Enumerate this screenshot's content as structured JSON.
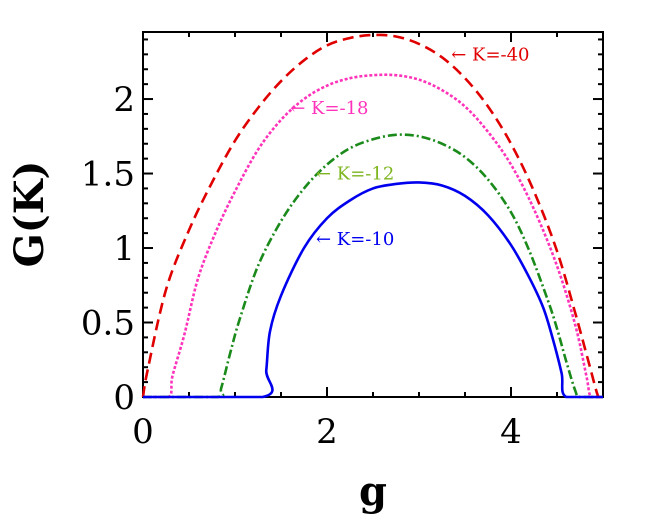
{
  "chart_data": {
    "type": "line",
    "title": "",
    "xlabel": "g",
    "ylabel": "G(K)",
    "xlim": [
      0,
      5
    ],
    "ylim": [
      0,
      2.45
    ],
    "x_ticks": [
      0,
      2,
      4
    ],
    "x_tick_labels": [
      "0",
      "2",
      "4"
    ],
    "y_ticks": [
      0,
      0.5,
      1,
      1.5,
      2
    ],
    "y_tick_labels": [
      "0",
      "0.5",
      "1",
      "1.5",
      "2"
    ],
    "grid": false,
    "legend": "none",
    "series": [
      {
        "label": "K=-40",
        "color": "#e00000",
        "dash": "dashed",
        "points": [
          [
            0,
            0
          ],
          [
            0.05,
            0.18
          ],
          [
            0.25,
            0.72
          ],
          [
            0.5,
            1.12
          ],
          [
            0.75,
            1.44
          ],
          [
            1.0,
            1.72
          ],
          [
            1.25,
            1.94
          ],
          [
            1.5,
            2.12
          ],
          [
            1.75,
            2.26
          ],
          [
            2.0,
            2.36
          ],
          [
            2.25,
            2.41
          ],
          [
            2.5,
            2.43
          ],
          [
            2.75,
            2.42
          ],
          [
            3.0,
            2.37
          ],
          [
            3.25,
            2.28
          ],
          [
            3.5,
            2.14
          ],
          [
            3.75,
            1.95
          ],
          [
            4.0,
            1.7
          ],
          [
            4.25,
            1.38
          ],
          [
            4.5,
            0.98
          ],
          [
            4.7,
            0.56
          ],
          [
            4.85,
            0.22
          ],
          [
            4.95,
            0
          ],
          [
            5.0,
            0
          ]
        ]
      },
      {
        "label": "K=-18",
        "color": "#ff33bb",
        "dash": "dotted",
        "points": [
          [
            0,
            0
          ],
          [
            0.28,
            0
          ],
          [
            0.32,
            0.14
          ],
          [
            0.45,
            0.42
          ],
          [
            0.6,
            0.8
          ],
          [
            0.8,
            1.12
          ],
          [
            1.0,
            1.38
          ],
          [
            1.25,
            1.66
          ],
          [
            1.5,
            1.86
          ],
          [
            1.75,
            2.0
          ],
          [
            2.0,
            2.09
          ],
          [
            2.25,
            2.14
          ],
          [
            2.5,
            2.16
          ],
          [
            2.75,
            2.16
          ],
          [
            3.0,
            2.13
          ],
          [
            3.25,
            2.06
          ],
          [
            3.5,
            1.95
          ],
          [
            3.75,
            1.78
          ],
          [
            4.0,
            1.56
          ],
          [
            4.25,
            1.26
          ],
          [
            4.5,
            0.88
          ],
          [
            4.7,
            0.48
          ],
          [
            4.82,
            0.14
          ],
          [
            4.87,
            0
          ],
          [
            5.0,
            0
          ]
        ]
      },
      {
        "label": "K=-12",
        "color": "#1a8a1a",
        "dash": "dashdot",
        "points": [
          [
            0,
            0
          ],
          [
            0.8,
            0
          ],
          [
            0.85,
            0.06
          ],
          [
            0.95,
            0.3
          ],
          [
            1.05,
            0.52
          ],
          [
            1.25,
            0.88
          ],
          [
            1.5,
            1.18
          ],
          [
            1.75,
            1.4
          ],
          [
            2.0,
            1.56
          ],
          [
            2.25,
            1.67
          ],
          [
            2.5,
            1.73
          ],
          [
            2.75,
            1.76
          ],
          [
            3.0,
            1.75
          ],
          [
            3.25,
            1.7
          ],
          [
            3.5,
            1.61
          ],
          [
            3.75,
            1.46
          ],
          [
            4.0,
            1.24
          ],
          [
            4.2,
            0.98
          ],
          [
            4.4,
            0.65
          ],
          [
            4.5,
            0.46
          ],
          [
            4.6,
            0.24
          ],
          [
            4.7,
            0.04
          ],
          [
            4.75,
            0
          ],
          [
            5.0,
            0
          ]
        ]
      },
      {
        "label": "K=-10",
        "color": "#0000ee",
        "dash": "solid",
        "points": [
          [
            0,
            0
          ],
          [
            1.3,
            0
          ],
          [
            1.34,
            0.18
          ],
          [
            1.38,
            0.44
          ],
          [
            1.5,
            0.68
          ],
          [
            1.75,
            1.0
          ],
          [
            2.0,
            1.2
          ],
          [
            2.25,
            1.32
          ],
          [
            2.5,
            1.4
          ],
          [
            2.75,
            1.43
          ],
          [
            3.0,
            1.44
          ],
          [
            3.25,
            1.42
          ],
          [
            3.5,
            1.35
          ],
          [
            3.75,
            1.22
          ],
          [
            4.0,
            1.02
          ],
          [
            4.2,
            0.8
          ],
          [
            4.35,
            0.6
          ],
          [
            4.45,
            0.4
          ],
          [
            4.55,
            0.16
          ],
          [
            4.6,
            0
          ],
          [
            5.0,
            0
          ]
        ]
      }
    ],
    "annotations": [
      {
        "text": "← K=-40",
        "color": "#e00000",
        "at": [
          3.35,
          2.26
        ]
      },
      {
        "text": "← K=-18",
        "color": "#ff33bb",
        "at": [
          1.6,
          1.9
        ]
      },
      {
        "text": "← K=-12",
        "color": "#7db51e",
        "at": [
          1.88,
          1.46
        ]
      },
      {
        "text": "← K=-10",
        "color": "#0000ee",
        "at": [
          1.88,
          1.02
        ]
      }
    ]
  }
}
